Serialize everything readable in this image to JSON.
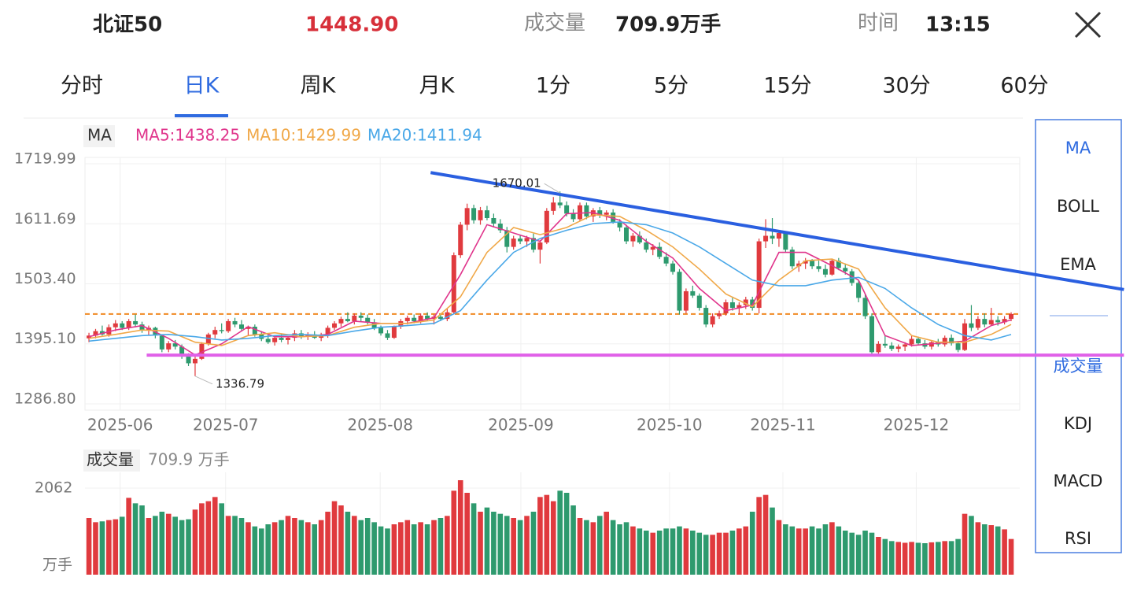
{
  "header": {
    "name": "北证50",
    "price": "1448.90",
    "volume_label": "成交量",
    "volume": "709.9万手",
    "time_label": "时间",
    "time": "13:15"
  },
  "tabs": [
    "分时",
    "日K",
    "周K",
    "月K",
    "1分",
    "5分",
    "15分",
    "30分",
    "60分"
  ],
  "side_menu": {
    "main": [
      "MA",
      "BOLL",
      "EMA"
    ],
    "sub": [
      "成交量",
      "KDJ",
      "MACD",
      "RSI"
    ]
  },
  "chart_data": {
    "type": "candlestick",
    "indicator": "MA",
    "up_color": "#e03a3e",
    "down_color": "#2e9a6e",
    "ylim": [
      1286.8,
      1719.99
    ],
    "yticks": [
      1719.99,
      1611.69,
      {
        "value": 1503.4,
        "label": "1503.40"
      },
      {
        "value": 1395.1,
        "label": "1395.10"
      },
      {
        "value": 1286.8,
        "label": "1286.80"
      }
    ],
    "xlim": [
      -0.6,
      140.3
    ],
    "xticks": [
      {
        "value": 4.7,
        "label": "2025-06"
      },
      {
        "value": 20.6,
        "label": "2025-07"
      },
      {
        "value": 43.9,
        "label": "2025-08"
      },
      {
        "value": 65.1,
        "label": "2025-09"
      },
      {
        "value": 87.5,
        "label": "2025-10"
      },
      {
        "value": 104.6,
        "label": "2025-11"
      },
      {
        "value": 124.7,
        "label": "2025-12"
      }
    ],
    "grid": true,
    "candles": [
      [
        1405,
        1415,
        1398,
        1410
      ],
      [
        1410,
        1422,
        1405,
        1418
      ],
      [
        1418,
        1428,
        1410,
        1412
      ],
      [
        1412,
        1430,
        1408,
        1425
      ],
      [
        1425,
        1438,
        1418,
        1432
      ],
      [
        1432,
        1436,
        1420,
        1424
      ],
      [
        1424,
        1440,
        1420,
        1436
      ],
      [
        1436,
        1448,
        1425,
        1430
      ],
      [
        1430,
        1435,
        1415,
        1420
      ],
      [
        1420,
        1428,
        1410,
        1424
      ],
      [
        1424,
        1426,
        1405,
        1410
      ],
      [
        1410,
        1412,
        1380,
        1385
      ],
      [
        1385,
        1400,
        1380,
        1396
      ],
      [
        1396,
        1402,
        1385,
        1390
      ],
      [
        1390,
        1394,
        1368,
        1372
      ],
      [
        1372,
        1378,
        1355,
        1360
      ],
      [
        1360,
        1372,
        1336.79,
        1368
      ],
      [
        1368,
        1398,
        1366,
        1395
      ],
      [
        1395,
        1415,
        1392,
        1412
      ],
      [
        1412,
        1426,
        1405,
        1420
      ],
      [
        1420,
        1432,
        1414,
        1418
      ],
      [
        1418,
        1440,
        1415,
        1436
      ],
      [
        1436,
        1442,
        1425,
        1430
      ],
      [
        1430,
        1438,
        1418,
        1422
      ],
      [
        1422,
        1428,
        1410,
        1426
      ],
      [
        1426,
        1430,
        1408,
        1412
      ],
      [
        1412,
        1418,
        1400,
        1404
      ],
      [
        1404,
        1412,
        1395,
        1398
      ],
      [
        1398,
        1410,
        1392,
        1406
      ],
      [
        1406,
        1414,
        1398,
        1402
      ],
      [
        1402,
        1408,
        1394,
        1406
      ],
      [
        1406,
        1420,
        1400,
        1414
      ],
      [
        1414,
        1420,
        1404,
        1408
      ],
      [
        1408,
        1416,
        1402,
        1412
      ],
      [
        1412,
        1418,
        1404,
        1406
      ],
      [
        1406,
        1415,
        1400,
        1410
      ],
      [
        1410,
        1428,
        1406,
        1424
      ],
      [
        1424,
        1436,
        1420,
        1432
      ],
      [
        1432,
        1444,
        1426,
        1440
      ],
      [
        1440,
        1452,
        1434,
        1436
      ],
      [
        1436,
        1450,
        1430,
        1446
      ],
      [
        1446,
        1452,
        1436,
        1442
      ],
      [
        1442,
        1448,
        1430,
        1434
      ],
      [
        1434,
        1440,
        1420,
        1424
      ],
      [
        1424,
        1428,
        1410,
        1414
      ],
      [
        1414,
        1420,
        1402,
        1406
      ],
      [
        1406,
        1428,
        1404,
        1426
      ],
      [
        1426,
        1440,
        1422,
        1436
      ],
      [
        1436,
        1446,
        1430,
        1442
      ],
      [
        1442,
        1448,
        1432,
        1436
      ],
      [
        1436,
        1450,
        1432,
        1446
      ],
      [
        1446,
        1452,
        1436,
        1440
      ],
      [
        1440,
        1448,
        1430,
        1444
      ],
      [
        1444,
        1450,
        1436,
        1440
      ],
      [
        1440,
        1458,
        1436,
        1452
      ],
      [
        1452,
        1560,
        1448,
        1555
      ],
      [
        1555,
        1615,
        1550,
        1610
      ],
      [
        1610,
        1648,
        1600,
        1640
      ],
      [
        1640,
        1646,
        1612,
        1618
      ],
      [
        1618,
        1642,
        1610,
        1636
      ],
      [
        1636,
        1644,
        1618,
        1622
      ],
      [
        1622,
        1630,
        1605,
        1612
      ],
      [
        1612,
        1620,
        1595,
        1600
      ],
      [
        1600,
        1606,
        1560,
        1570
      ],
      [
        1570,
        1590,
        1565,
        1585
      ],
      [
        1585,
        1592,
        1575,
        1580
      ],
      [
        1580,
        1590,
        1570,
        1586
      ],
      [
        1586,
        1594,
        1560,
        1565
      ],
      [
        1565,
        1582,
        1540,
        1578
      ],
      [
        1578,
        1640,
        1575,
        1635
      ],
      [
        1635,
        1660,
        1628,
        1650
      ],
      [
        1650,
        1670.01,
        1640,
        1645
      ],
      [
        1645,
        1652,
        1625,
        1630
      ],
      [
        1630,
        1638,
        1615,
        1620
      ],
      [
        1620,
        1650,
        1616,
        1645
      ],
      [
        1645,
        1650,
        1620,
        1625
      ],
      [
        1625,
        1640,
        1615,
        1636
      ],
      [
        1636,
        1642,
        1622,
        1628
      ],
      [
        1628,
        1636,
        1618,
        1632
      ],
      [
        1632,
        1638,
        1612,
        1615
      ],
      [
        1615,
        1620,
        1598,
        1605
      ],
      [
        1605,
        1610,
        1575,
        1580
      ],
      [
        1580,
        1595,
        1570,
        1590
      ],
      [
        1590,
        1598,
        1575,
        1578
      ],
      [
        1578,
        1585,
        1560,
        1565
      ],
      [
        1565,
        1575,
        1555,
        1570
      ],
      [
        1570,
        1578,
        1548,
        1552
      ],
      [
        1552,
        1560,
        1535,
        1540
      ],
      [
        1540,
        1545,
        1520,
        1525
      ],
      [
        1525,
        1530,
        1448,
        1455
      ],
      [
        1455,
        1495,
        1450,
        1490
      ],
      [
        1490,
        1500,
        1478,
        1482
      ],
      [
        1482,
        1486,
        1455,
        1460
      ],
      [
        1460,
        1465,
        1425,
        1430
      ],
      [
        1430,
        1450,
        1425,
        1445
      ],
      [
        1445,
        1455,
        1440,
        1450
      ],
      [
        1450,
        1475,
        1446,
        1470
      ],
      [
        1470,
        1478,
        1455,
        1460
      ],
      [
        1460,
        1470,
        1448,
        1465
      ],
      [
        1465,
        1480,
        1458,
        1475
      ],
      [
        1475,
        1480,
        1455,
        1460
      ],
      [
        1460,
        1585,
        1450,
        1580
      ],
      [
        1580,
        1620,
        1568,
        1590
      ],
      [
        1590,
        1622,
        1575,
        1585
      ],
      [
        1585,
        1600,
        1570,
        1595
      ],
      [
        1595,
        1598,
        1560,
        1565
      ],
      [
        1565,
        1570,
        1530,
        1535
      ],
      [
        1535,
        1545,
        1525,
        1540
      ],
      [
        1540,
        1550,
        1530,
        1545
      ],
      [
        1545,
        1548,
        1530,
        1535
      ],
      [
        1535,
        1545,
        1525,
        1530
      ],
      [
        1530,
        1538,
        1515,
        1520
      ],
      [
        1520,
        1548,
        1518,
        1545
      ],
      [
        1545,
        1550,
        1528,
        1532
      ],
      [
        1532,
        1540,
        1520,
        1526
      ],
      [
        1526,
        1530,
        1500,
        1505
      ],
      [
        1505,
        1510,
        1470,
        1478
      ],
      [
        1478,
        1485,
        1440,
        1445
      ],
      [
        1445,
        1450,
        1375,
        1380
      ],
      [
        1380,
        1400,
        1376,
        1395
      ],
      [
        1395,
        1410,
        1388,
        1392
      ],
      [
        1392,
        1398,
        1382,
        1386
      ],
      [
        1386,
        1394,
        1380,
        1390
      ],
      [
        1390,
        1398,
        1382,
        1394
      ],
      [
        1394,
        1410,
        1390,
        1404
      ],
      [
        1404,
        1408,
        1392,
        1396
      ],
      [
        1396,
        1402,
        1386,
        1390
      ],
      [
        1390,
        1400,
        1385,
        1398
      ],
      [
        1398,
        1404,
        1390,
        1394
      ],
      [
        1394,
        1410,
        1390,
        1406
      ],
      [
        1406,
        1412,
        1392,
        1396
      ],
      [
        1396,
        1400,
        1380,
        1384
      ],
      [
        1384,
        1440,
        1382,
        1432
      ],
      [
        1432,
        1465,
        1418,
        1424
      ],
      [
        1424,
        1445,
        1420,
        1440
      ],
      [
        1440,
        1450,
        1425,
        1430
      ],
      [
        1430,
        1460,
        1428,
        1438
      ],
      [
        1438,
        1445,
        1428,
        1434
      ],
      [
        1434,
        1445,
        1430,
        1440
      ],
      [
        1440,
        1452,
        1436,
        1448.9
      ]
    ],
    "ma_x": [
      0,
      4,
      8,
      12,
      16,
      20,
      24,
      28,
      32,
      36,
      40,
      44,
      48,
      52,
      56,
      60,
      64,
      68,
      72,
      76,
      80,
      84,
      88,
      92,
      96,
      100,
      104,
      108,
      112,
      116,
      120,
      124,
      128,
      132,
      136,
      139
    ],
    "series": [
      {
        "name": "MA5",
        "label": "MA5:1438.25",
        "color": "#e0358c",
        "values": [
          1408,
          1420,
          1428,
          1405,
          1375,
          1395,
          1426,
          1408,
          1408,
          1412,
          1436,
          1432,
          1432,
          1442,
          1520,
          1610,
          1595,
          1580,
          1630,
          1632,
          1618,
          1580,
          1550,
          1495,
          1455,
          1465,
          1560,
          1560,
          1536,
          1510,
          1410,
          1392,
          1396,
          1400,
          1428,
          1438.25
        ]
      },
      {
        "name": "MA10",
        "label": "MA10:1429.99",
        "color": "#f0a848",
        "values": [
          1405,
          1412,
          1420,
          1418,
          1398,
          1392,
          1410,
          1415,
          1408,
          1410,
          1425,
          1432,
          1432,
          1438,
          1480,
          1560,
          1605,
          1592,
          1605,
          1628,
          1625,
          1600,
          1570,
          1530,
          1485,
          1462,
          1510,
          1545,
          1548,
          1530,
          1460,
          1410,
          1398,
          1398,
          1412,
          1429.99
        ]
      },
      {
        "name": "MA20",
        "label": "MA20:1411.94",
        "color": "#4aa8e8",
        "values": [
          1400,
          1405,
          1410,
          1412,
          1408,
          1402,
          1405,
          1410,
          1412,
          1410,
          1418,
          1425,
          1428,
          1432,
          1455,
          1510,
          1560,
          1585,
          1600,
          1612,
          1615,
          1610,
          1595,
          1570,
          1540,
          1510,
          1500,
          1500,
          1510,
          1515,
          1495,
          1460,
          1430,
          1410,
          1402,
          1411.94
        ]
      }
    ],
    "last_price_color": "#f08a24",
    "trend_lines": [
      {
        "color": "#2a5fe0",
        "x": [
          51.5,
          156
        ],
        "y": [
          1704,
          1493
        ]
      },
      {
        "color": "#e060e8",
        "x": [
          8.7,
          156
        ],
        "y": [
          1374.6,
          1374.6
        ]
      }
    ],
    "volume": {
      "label": "成交量",
      "value_text": "709.9 万手",
      "unit": "万手",
      "ylim": [
        0,
        2250
      ],
      "yticks": [
        2062
      ],
      "values": [
        1350,
        1250,
        1270,
        1300,
        1320,
        1380,
        1830,
        1700,
        1650,
        1350,
        1400,
        1500,
        1450,
        1380,
        1300,
        1320,
        1550,
        1700,
        1750,
        1850,
        1700,
        1400,
        1400,
        1350,
        1250,
        1150,
        1100,
        1200,
        1250,
        1300,
        1400,
        1350,
        1300,
        1250,
        1200,
        1300,
        1500,
        1750,
        1650,
        1500,
        1400,
        1300,
        1350,
        1250,
        1150,
        1100,
        1200,
        1250,
        1300,
        1200,
        1250,
        1200,
        1300,
        1350,
        1400,
        2000,
        2250,
        1950,
        1700,
        1500,
        1600,
        1500,
        1450,
        1400,
        1350,
        1300,
        1400,
        1500,
        1850,
        1900,
        1750,
        2000,
        1950,
        1650,
        1350,
        1300,
        1250,
        1400,
        1500,
        1300,
        1200,
        1250,
        1150,
        1100,
        1050,
        1000,
        1050,
        1100,
        1100,
        1150,
        1100,
        1050,
        1000,
        950,
        950,
        1000,
        1000,
        1050,
        1100,
        1150,
        1500,
        1850,
        1900,
        1600,
        1300,
        1200,
        1150,
        1100,
        1100,
        1150,
        1100,
        1200,
        1250,
        1150,
        1050,
        1000,
        950,
        1050,
        1000,
        900,
        850,
        800,
        780,
        760,
        780,
        760,
        750,
        770,
        780,
        800,
        800,
        850,
        1450,
        1400,
        1250,
        1200,
        1180,
        1150,
        1080,
        850
      ]
    }
  }
}
